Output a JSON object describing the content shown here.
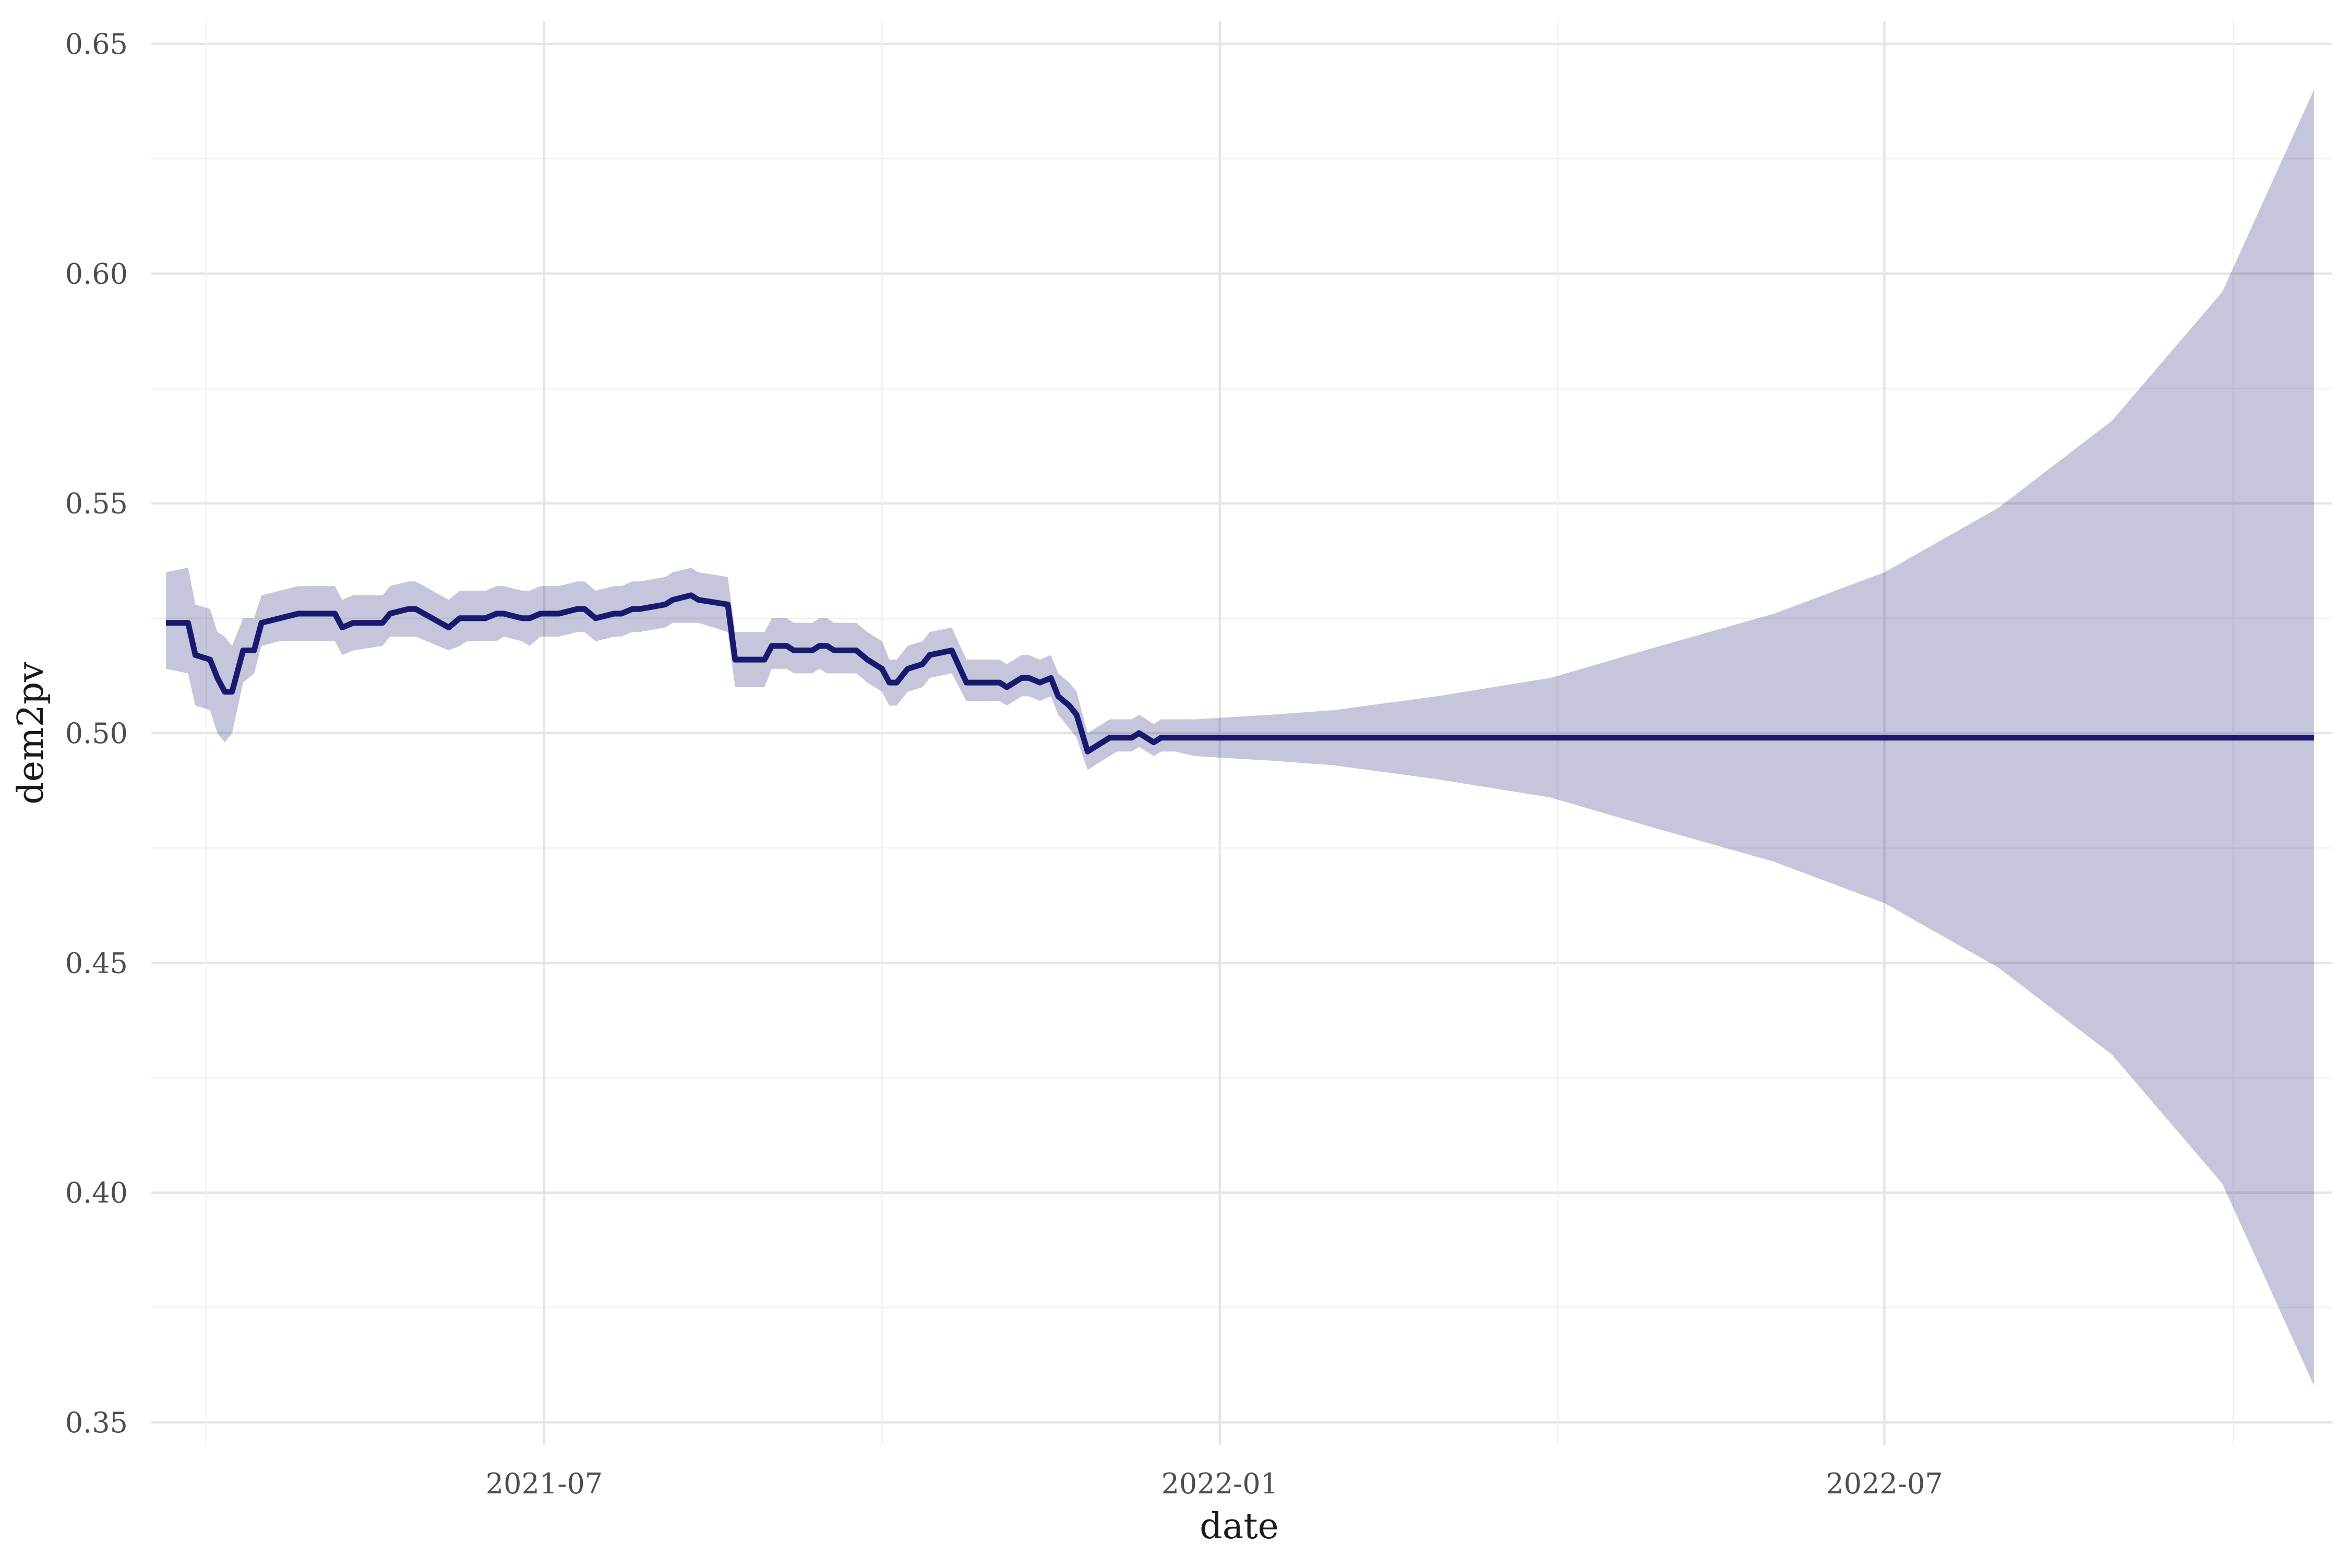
{
  "chart_data": {
    "type": "line",
    "xlabel": "date",
    "ylabel": "dem2pv",
    "x_type": "date",
    "xlim": [
      "2021-03-16",
      "2022-10-31"
    ],
    "ylim": [
      0.345,
      0.655
    ],
    "x_ticks": [
      "2021-07",
      "2022-01",
      "2022-07"
    ],
    "x_tick_dates": [
      "2021-07-01",
      "2022-01-01",
      "2022-07-01"
    ],
    "y_ticks": [
      0.35,
      0.4,
      0.45,
      0.5,
      0.55,
      0.6,
      0.65
    ],
    "y_tick_labels": [
      "0.35",
      "0.40",
      "0.45",
      "0.50",
      "0.55",
      "0.60",
      "0.65"
    ],
    "grid": true,
    "line_color": "#191970",
    "band_color": "#191970",
    "band_opacity": 0.25,
    "series": [
      {
        "type": "line",
        "x": [
          "2021-03-20",
          "2021-03-26",
          "2021-03-28",
          "2021-04-01",
          "2021-04-03",
          "2021-04-05",
          "2021-04-07",
          "2021-04-10",
          "2021-04-13",
          "2021-04-15",
          "2021-04-20",
          "2021-04-25",
          "2021-05-05",
          "2021-05-07",
          "2021-05-10",
          "2021-05-18",
          "2021-05-20",
          "2021-05-25",
          "2021-05-27",
          "2021-06-05",
          "2021-06-08",
          "2021-06-10",
          "2021-06-15",
          "2021-06-18",
          "2021-06-20",
          "2021-06-25",
          "2021-06-27",
          "2021-06-30",
          "2021-07-05",
          "2021-07-10",
          "2021-07-12",
          "2021-07-15",
          "2021-07-20",
          "2021-07-22",
          "2021-07-25",
          "2021-07-27",
          "2021-08-03",
          "2021-08-05",
          "2021-08-10",
          "2021-08-12",
          "2021-08-20",
          "2021-08-22",
          "2021-08-30",
          "2021-09-01",
          "2021-09-05",
          "2021-09-07",
          "2021-09-12",
          "2021-09-14",
          "2021-09-16",
          "2021-09-18",
          "2021-09-22",
          "2021-09-24",
          "2021-09-27",
          "2021-10-01",
          "2021-10-03",
          "2021-10-05",
          "2021-10-08",
          "2021-10-12",
          "2021-10-14",
          "2021-10-20",
          "2021-10-24",
          "2021-10-28",
          "2021-11-02",
          "2021-11-04",
          "2021-11-06",
          "2021-11-08",
          "2021-11-10",
          "2021-11-13",
          "2021-11-16",
          "2021-11-18",
          "2021-11-21",
          "2021-11-23",
          "2021-11-26",
          "2021-12-02",
          "2021-12-04",
          "2021-12-08",
          "2021-12-10",
          "2021-12-14",
          "2021-12-16",
          "2021-12-20",
          "2021-12-25",
          "2022-01-15",
          "2022-04-01",
          "2022-07-01",
          "2022-10-01",
          "2022-10-26"
        ],
        "y": [
          0.524,
          0.524,
          0.517,
          0.516,
          0.512,
          0.509,
          0.509,
          0.518,
          0.518,
          0.524,
          0.525,
          0.526,
          0.526,
          0.523,
          0.524,
          0.524,
          0.526,
          0.527,
          0.527,
          0.523,
          0.525,
          0.525,
          0.525,
          0.526,
          0.526,
          0.525,
          0.525,
          0.526,
          0.526,
          0.527,
          0.527,
          0.525,
          0.526,
          0.526,
          0.527,
          0.527,
          0.528,
          0.529,
          0.53,
          0.529,
          0.528,
          0.516,
          0.516,
          0.519,
          0.519,
          0.518,
          0.518,
          0.519,
          0.519,
          0.518,
          0.518,
          0.518,
          0.516,
          0.514,
          0.511,
          0.511,
          0.514,
          0.515,
          0.517,
          0.518,
          0.511,
          0.511,
          0.511,
          0.51,
          0.511,
          0.512,
          0.512,
          0.511,
          0.512,
          0.508,
          0.506,
          0.504,
          0.496,
          0.499,
          0.499,
          0.499,
          0.5,
          0.498,
          0.499,
          0.499,
          0.499,
          0.499,
          0.499,
          0.499,
          0.499,
          0.499
        ]
      },
      {
        "type": "ribbon",
        "x": [
          "2021-03-20",
          "2021-03-26",
          "2021-03-28",
          "2021-04-01",
          "2021-04-03",
          "2021-04-05",
          "2021-04-07",
          "2021-04-10",
          "2021-04-13",
          "2021-04-15",
          "2021-04-20",
          "2021-04-25",
          "2021-05-05",
          "2021-05-07",
          "2021-05-10",
          "2021-05-18",
          "2021-05-20",
          "2021-05-25",
          "2021-05-27",
          "2021-06-05",
          "2021-06-08",
          "2021-06-10",
          "2021-06-15",
          "2021-06-18",
          "2021-06-20",
          "2021-06-25",
          "2021-06-27",
          "2021-06-30",
          "2021-07-05",
          "2021-07-10",
          "2021-07-12",
          "2021-07-15",
          "2021-07-20",
          "2021-07-22",
          "2021-07-25",
          "2021-07-27",
          "2021-08-03",
          "2021-08-05",
          "2021-08-10",
          "2021-08-12",
          "2021-08-20",
          "2021-08-22",
          "2021-08-30",
          "2021-09-01",
          "2021-09-05",
          "2021-09-07",
          "2021-09-12",
          "2021-09-14",
          "2021-09-16",
          "2021-09-18",
          "2021-09-22",
          "2021-09-24",
          "2021-09-27",
          "2021-10-01",
          "2021-10-03",
          "2021-10-05",
          "2021-10-08",
          "2021-10-12",
          "2021-10-14",
          "2021-10-20",
          "2021-10-24",
          "2021-10-28",
          "2021-11-02",
          "2021-11-04",
          "2021-11-06",
          "2021-11-08",
          "2021-11-10",
          "2021-11-13",
          "2021-11-16",
          "2021-11-18",
          "2021-11-21",
          "2021-11-23",
          "2021-11-26",
          "2021-12-02",
          "2021-12-04",
          "2021-12-08",
          "2021-12-10",
          "2021-12-14",
          "2021-12-16",
          "2021-12-20",
          "2021-12-25",
          "2022-01-15",
          "2022-02-01",
          "2022-03-01",
          "2022-04-01",
          "2022-05-01",
          "2022-06-01",
          "2022-07-01",
          "2022-08-01",
          "2022-09-01",
          "2022-10-01",
          "2022-10-26"
        ],
        "ymin": [
          0.514,
          0.513,
          0.506,
          0.505,
          0.5,
          0.498,
          0.5,
          0.511,
          0.513,
          0.519,
          0.52,
          0.52,
          0.52,
          0.517,
          0.518,
          0.519,
          0.521,
          0.521,
          0.521,
          0.518,
          0.519,
          0.52,
          0.52,
          0.52,
          0.521,
          0.52,
          0.519,
          0.521,
          0.521,
          0.522,
          0.522,
          0.52,
          0.521,
          0.521,
          0.522,
          0.522,
          0.523,
          0.524,
          0.524,
          0.524,
          0.522,
          0.51,
          0.51,
          0.514,
          0.514,
          0.513,
          0.513,
          0.514,
          0.513,
          0.513,
          0.513,
          0.513,
          0.511,
          0.509,
          0.506,
          0.506,
          0.509,
          0.51,
          0.512,
          0.513,
          0.507,
          0.507,
          0.507,
          0.506,
          0.507,
          0.508,
          0.508,
          0.507,
          0.508,
          0.504,
          0.501,
          0.499,
          0.492,
          0.495,
          0.496,
          0.496,
          0.497,
          0.495,
          0.496,
          0.496,
          0.495,
          0.494,
          0.493,
          0.49,
          0.486,
          0.479,
          0.472,
          0.463,
          0.449,
          0.43,
          0.402,
          0.358
        ],
        "ymax": [
          0.535,
          0.536,
          0.528,
          0.527,
          0.522,
          0.521,
          0.519,
          0.525,
          0.525,
          0.53,
          0.531,
          0.532,
          0.532,
          0.529,
          0.53,
          0.53,
          0.532,
          0.533,
          0.533,
          0.529,
          0.531,
          0.531,
          0.531,
          0.532,
          0.532,
          0.531,
          0.531,
          0.532,
          0.532,
          0.533,
          0.533,
          0.531,
          0.532,
          0.532,
          0.533,
          0.533,
          0.534,
          0.535,
          0.536,
          0.535,
          0.534,
          0.522,
          0.522,
          0.525,
          0.525,
          0.524,
          0.524,
          0.525,
          0.525,
          0.524,
          0.524,
          0.524,
          0.522,
          0.52,
          0.516,
          0.516,
          0.519,
          0.52,
          0.522,
          0.523,
          0.516,
          0.516,
          0.516,
          0.515,
          0.516,
          0.517,
          0.517,
          0.516,
          0.517,
          0.513,
          0.511,
          0.509,
          0.5,
          0.503,
          0.503,
          0.503,
          0.504,
          0.502,
          0.503,
          0.503,
          0.503,
          0.504,
          0.505,
          0.508,
          0.512,
          0.519,
          0.526,
          0.535,
          0.549,
          0.568,
          0.596,
          0.64
        ]
      }
    ]
  }
}
